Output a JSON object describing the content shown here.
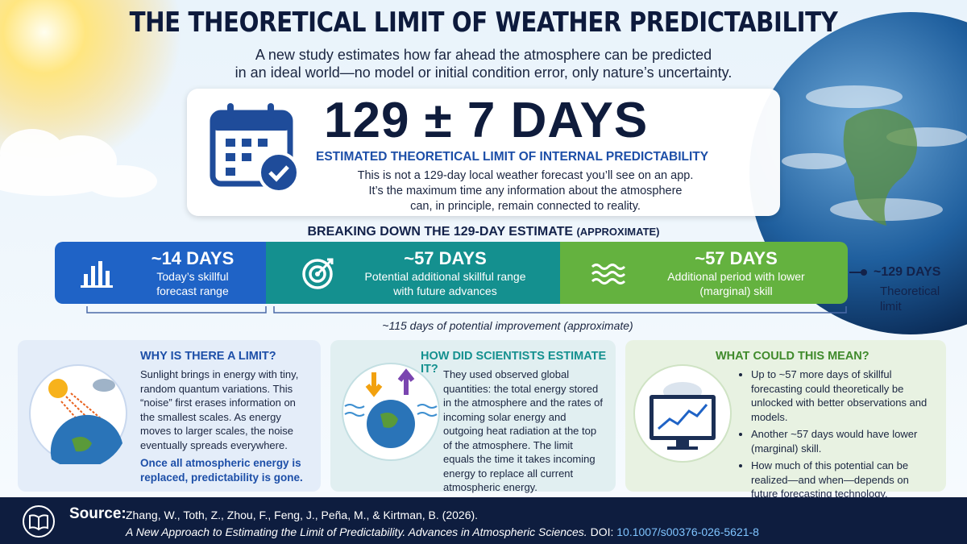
{
  "header": {
    "title": "THE THEORETICAL LIMIT OF WEATHER PREDICTABILITY",
    "subtitle_lines": [
      "A new study estimates how far ahead the atmosphere can be predicted",
      "in an ideal world—no model or initial condition error, only nature’s uncertainty."
    ]
  },
  "hero": {
    "headline": "129 ± 7 DAYS",
    "label": "ESTIMATED THEORETICAL LIMIT OF INTERNAL PREDICTABILITY",
    "text_lines": [
      "This is not a 129-day local weather forecast you’ll see on an app.",
      "It’s the maximum time any information about the atmosphere",
      "can, in principle, remain connected to reality."
    ]
  },
  "breakdown": {
    "title": "BREAKING DOWN THE 129-DAY ESTIMATE",
    "qualifier": "(APPROXIMATE)",
    "segments": [
      {
        "value": "~14 DAYS",
        "description_lines": [
          "Today’s skillful",
          "forecast range"
        ]
      },
      {
        "value": "~57 DAYS",
        "description_lines": [
          "Potential additional skillful range",
          "with future advances"
        ]
      },
      {
        "value": "~57 DAYS",
        "description_lines": [
          "Additional period with lower",
          "(marginal) skill"
        ]
      }
    ],
    "total": {
      "value": "~129 DAYS",
      "label_lines": [
        "Theoretical",
        "limit"
      ]
    },
    "bracket_label": "~115 days of potential improvement (approximate)"
  },
  "panels": [
    {
      "title": "WHY IS THERE A LIMIT?",
      "text": "Sunlight brings in energy with tiny, random quantum variations. This “noise” first erases information on the smallest scales. As energy moves to larger scales, the noise eventually spreads everywhere.",
      "emphasis": "Once all atmospheric energy is replaced, predictability is gone."
    },
    {
      "title": "HOW DID SCIENTISTS ESTIMATE IT?",
      "text": "They used observed global quantities: the total energy stored in the atmosphere and the rates of incoming solar energy and outgoing heat radiation at the top of the atmosphere. The limit equals the time it takes incoming energy to replace all current atmospheric energy."
    },
    {
      "title": "WHAT COULD THIS MEAN?",
      "items": [
        "Up to ~57 more days of skillful forecasting could theoretically be unlocked with better observations and models.",
        "Another ~57 days would have lower (marginal) skill.",
        "How much of this potential can be realized—and when—depends on future forecasting technology."
      ]
    }
  ],
  "footer": {
    "source_label": "Source:",
    "citation": "Zhang, W., Toth, Z., Zhou, F., Feng, J., Peña, M., & Kirtman, B. (2026).",
    "journal": "A New Approach to Estimating the Limit of Predictability. Advances in Atmospheric Sciences.",
    "doi_label": "DOI:",
    "doi": "10.1007/s00376-026-5621-8"
  }
}
